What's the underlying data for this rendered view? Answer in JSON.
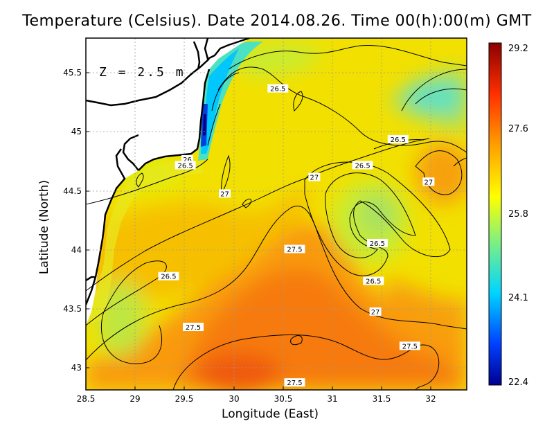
{
  "title": "Temperature (Celsius). Date 2014.08.26. Time 00(h):00(m) GMT",
  "depth_label": "Z = 2.5 m",
  "axes": {
    "xlabel": "Longitude (East)",
    "ylabel": "Latitude (North)",
    "x_ticks": [
      "28.5",
      "29",
      "29.5",
      "30",
      "30.5",
      "31",
      "31.5",
      "32"
    ],
    "y_ticks": [
      "45.5",
      "45",
      "44.5",
      "44",
      "43.5",
      "43"
    ],
    "x_range": [
      28.5,
      32.4
    ],
    "y_range": [
      42.8,
      45.8
    ]
  },
  "colorbar": {
    "ticks": [
      "29.2",
      "27.6",
      "25.8",
      "24.1",
      "22.4"
    ],
    "range": [
      22.4,
      29.2
    ],
    "colors": [
      "#00008f",
      "#0050ff",
      "#00e5ff",
      "#7ff07f",
      "#ffff00",
      "#ffa000",
      "#ff4000",
      "#8b0000"
    ]
  },
  "contour_labels": [
    {
      "text": "26.5",
      "lon": 30.45,
      "lat": 45.36
    },
    {
      "text": "26",
      "lon": 29.53,
      "lat": 44.76
    },
    {
      "text": "26.5",
      "lon": 29.51,
      "lat": 44.71
    },
    {
      "text": "26.5",
      "lon": 31.67,
      "lat": 44.93
    },
    {
      "text": "26.5",
      "lon": 31.31,
      "lat": 44.71
    },
    {
      "text": "27",
      "lon": 30.82,
      "lat": 44.61
    },
    {
      "text": "27",
      "lon": 31.98,
      "lat": 44.57
    },
    {
      "text": "27",
      "lon": 29.91,
      "lat": 44.47
    },
    {
      "text": "26.5",
      "lon": 31.46,
      "lat": 44.05
    },
    {
      "text": "27.5",
      "lon": 30.62,
      "lat": 44.0
    },
    {
      "text": "26.5",
      "lon": 29.34,
      "lat": 43.77
    },
    {
      "text": "26.5",
      "lon": 31.42,
      "lat": 43.73
    },
    {
      "text": "27",
      "lon": 31.44,
      "lat": 43.47
    },
    {
      "text": "27.5",
      "lon": 29.59,
      "lat": 43.34
    },
    {
      "text": "27.5",
      "lon": 31.79,
      "lat": 43.18
    },
    {
      "text": "27.5",
      "lon": 30.62,
      "lat": 42.87
    }
  ]
}
